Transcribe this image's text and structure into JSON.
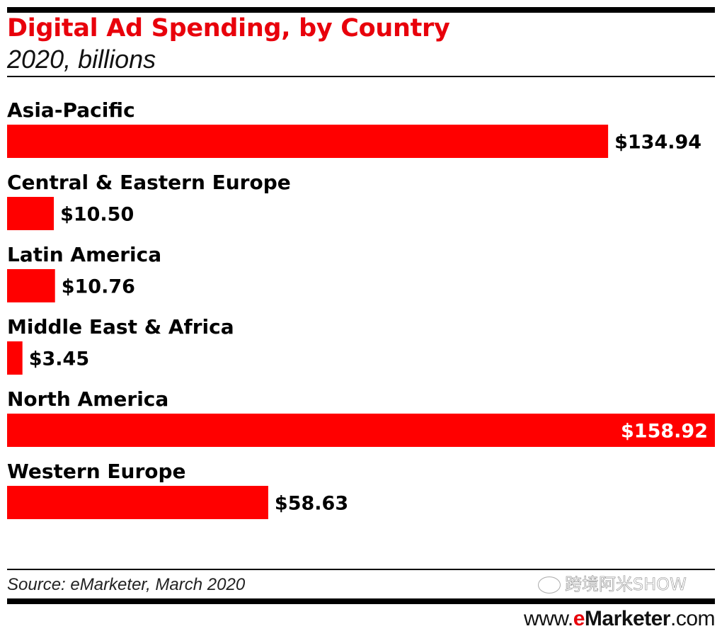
{
  "chart_data": {
    "type": "bar",
    "orientation": "horizontal",
    "title": "Digital Ad Spending, by Country",
    "subtitle": "2020, billions",
    "categories": [
      "Asia-Pacific",
      "Central & Eastern Europe",
      "Latin America",
      "Middle East & Africa",
      "North America",
      "Western Europe"
    ],
    "values": [
      134.94,
      10.5,
      10.76,
      3.45,
      158.92,
      58.63
    ],
    "value_labels": [
      "$134.94",
      "$10.50",
      "$10.76",
      "$3.45",
      "$158.92",
      "$58.63"
    ],
    "xlabel": "",
    "ylabel": "",
    "xlim": [
      0,
      158.92
    ],
    "grid": false,
    "bar_color": "#ff0000"
  },
  "source": "Source: eMarketer, March 2020",
  "watermark": "跨境阿米SHOW",
  "footer": {
    "prefix": "www.",
    "e": "e",
    "brand": "Marketer",
    "suffix": ".com"
  },
  "colors": {
    "title": "#e8000b",
    "bar": "#ff0000"
  }
}
